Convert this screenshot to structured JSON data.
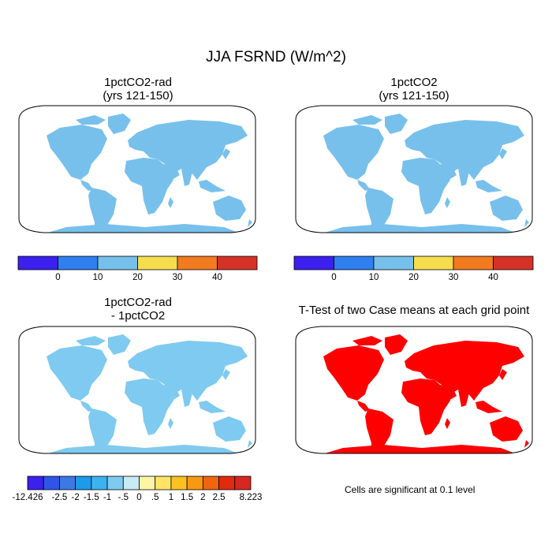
{
  "figure_title": "JJA FSRND (W/m^2)",
  "panels": [
    {
      "title_line1": "1pctCO2-rad",
      "title_line2": "(yrs 121-150)",
      "field": "mean-FSRND"
    },
    {
      "title_line1": "1pctCO2",
      "title_line2": "(yrs 121-150)",
      "field": "mean-FSRND"
    },
    {
      "title_line1": "1pctCO2-rad",
      "title_line2": "- 1pctCO2",
      "field": "difference"
    },
    {
      "title_line1": "T-Test of two Case means at each grid point",
      "title_line2": "",
      "field": "significance"
    }
  ],
  "colorbar_mean": {
    "colors": [
      "#3b20ee",
      "#2f7ff0",
      "#78c0ec",
      "#f5dd4e",
      "#f27a1f",
      "#d43228"
    ],
    "labels": [
      "0",
      "10",
      "20",
      "30",
      "40"
    ]
  },
  "colorbar_diff": {
    "colors": [
      "#3b20ee",
      "#2f55e8",
      "#3c78e6",
      "#1b9be9",
      "#3ab3ef",
      "#7fcaf0",
      "#c8eaf5",
      "#fdf5a6",
      "#fee464",
      "#fcc021",
      "#f79a12",
      "#f0650e",
      "#e12a0e",
      "#d8271f"
    ],
    "labels": [
      "-12.426",
      "-2.5",
      "-2",
      "-1.5",
      "-1",
      "-.5",
      "0",
      ".5",
      "1",
      "1.5",
      "2",
      "2.5",
      "8.223"
    ]
  },
  "significance_note": "Cells are significant at 0.1 level",
  "colors": {
    "ocean": "#ffffff",
    "frame": "#000000",
    "significant": "#ff0000",
    "antarctica_mean": "#2f7ff0",
    "antarctica_diff": "#fdf2b0"
  }
}
